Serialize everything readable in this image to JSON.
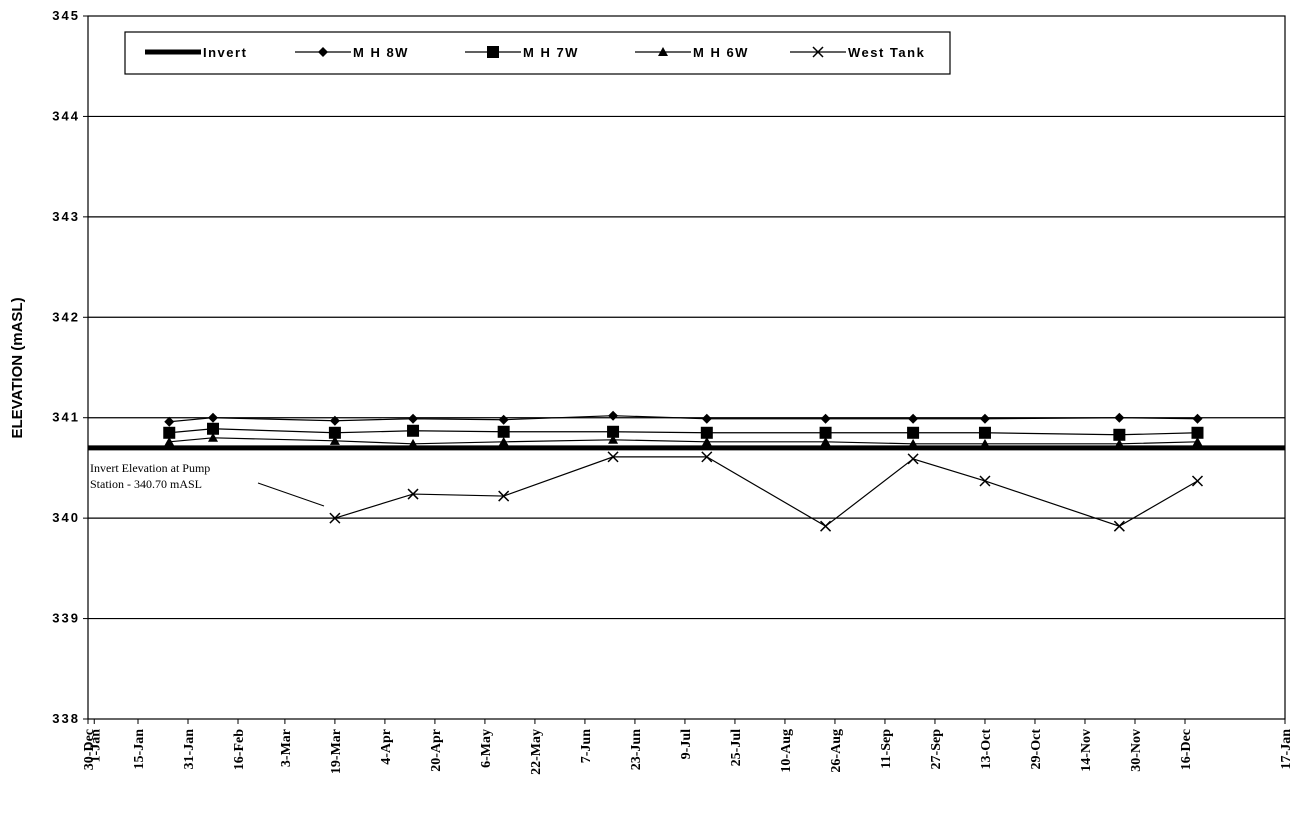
{
  "chart_data": {
    "type": "line",
    "ylabel": "ELEVATION (mASL)",
    "ylim": [
      338,
      345
    ],
    "yticks": [
      "338",
      "339",
      "340",
      "341",
      "342",
      "343",
      "344",
      "345"
    ],
    "x_tick_labels": [
      "30-Dec",
      "15-Jan",
      "31-Jan",
      "16-Feb",
      "3-Mar",
      "19-Mar",
      "4-Apr",
      "20-Apr",
      "6-May",
      "22-May",
      "7-Jun",
      "23-Jun",
      "9-Jul",
      "25-Jul",
      "10-Aug",
      "26-Aug",
      "11-Sep",
      "27-Sep",
      "13-Oct",
      "29-Oct",
      "14-Nov",
      "30-Nov",
      "16-Dec",
      "1-Jan",
      "17-Jan"
    ],
    "xlim": [
      "30-Dec",
      "17-Jan"
    ],
    "grid": "horizontal",
    "legend_position": "top",
    "sample_dates": [
      "25-Jan",
      "8-Feb",
      "19-Mar",
      "13-Apr",
      "12-May",
      "16-Jun",
      "16-Jul",
      "23-Aug",
      "20-Sep",
      "13-Oct",
      "25-Nov",
      "20-Dec"
    ],
    "series": [
      {
        "name": "Invert",
        "marker": "none",
        "values": [
          340.7,
          340.7,
          340.7,
          340.7,
          340.7,
          340.7,
          340.7,
          340.7,
          340.7,
          340.7,
          340.7,
          340.7
        ]
      },
      {
        "name": "M H 8W",
        "marker": "diamond",
        "values": [
          340.96,
          341.0,
          340.97,
          340.99,
          340.98,
          341.02,
          340.99,
          340.99,
          340.99,
          340.99,
          341.0,
          340.99
        ]
      },
      {
        "name": "M H 7W",
        "marker": "square",
        "values": [
          340.85,
          340.89,
          340.85,
          340.87,
          340.86,
          340.86,
          340.85,
          340.85,
          340.85,
          340.85,
          340.83,
          340.85
        ]
      },
      {
        "name": "M H 6W",
        "marker": "triangle",
        "values": [
          340.76,
          340.8,
          340.77,
          340.74,
          340.76,
          340.78,
          340.76,
          340.76,
          340.74,
          340.74,
          340.74,
          340.76
        ]
      },
      {
        "name": "West Tank",
        "marker": "x",
        "values": [
          null,
          null,
          340.0,
          340.24,
          340.22,
          340.61,
          340.61,
          339.92,
          340.59,
          340.37,
          339.92,
          340.37
        ]
      }
    ],
    "annotation": {
      "lines": [
        "Invert Elevation at Pump",
        "Station - 340.70 mASL"
      ]
    }
  }
}
